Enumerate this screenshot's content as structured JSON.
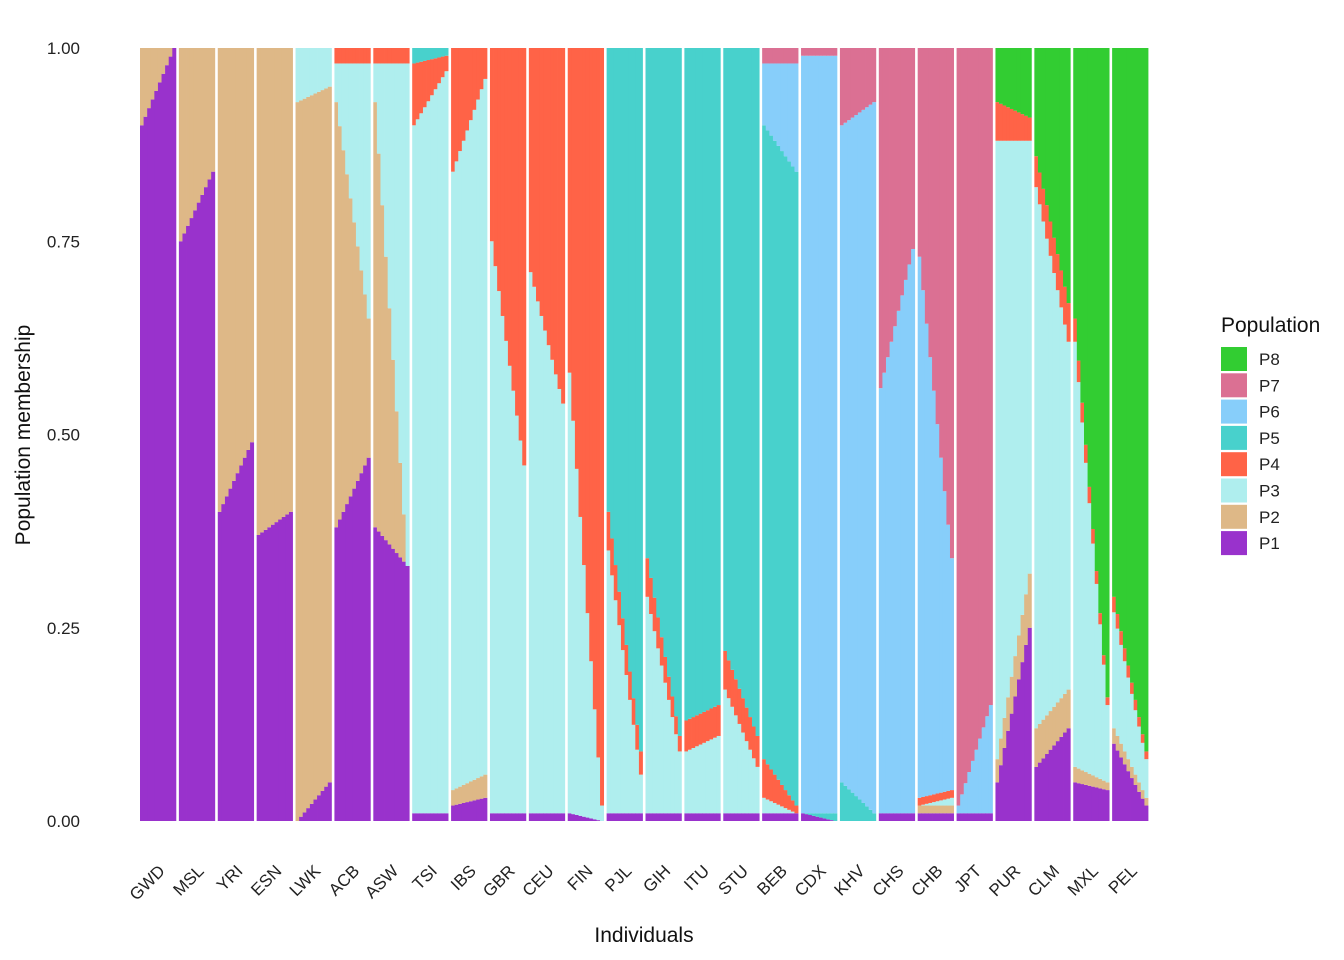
{
  "chart_data": {
    "type": "stacked-bar",
    "xlabel": "Individuals",
    "ylabel": "Population membership",
    "ylim": [
      0,
      1
    ],
    "yticks": [
      "0.00",
      "0.25",
      "0.50",
      "0.75",
      "1.00"
    ],
    "legend": {
      "title": "Population",
      "placement": "right",
      "entries": [
        {
          "name": "P8",
          "color": "#32CD32"
        },
        {
          "name": "P7",
          "color": "#DB7093"
        },
        {
          "name": "P6",
          "color": "#87CEFA"
        },
        {
          "name": "P5",
          "color": "#48D1CC"
        },
        {
          "name": "P4",
          "color": "#FF6347"
        },
        {
          "name": "P3",
          "color": "#AFEEEE"
        },
        {
          "name": "P2",
          "color": "#DEB887"
        },
        {
          "name": "P1",
          "color": "#9932CC"
        }
      ]
    },
    "stack_order_bottom_to_top": [
      "P1",
      "P2",
      "P3",
      "P4",
      "P5",
      "P6",
      "P7",
      "P8"
    ],
    "groups": [
      {
        "name": "GWD",
        "start": [
          0.9,
          0.1,
          0,
          0,
          0,
          0,
          0,
          0
        ],
        "end": [
          1.0,
          0,
          0,
          0,
          0,
          0,
          0,
          0
        ]
      },
      {
        "name": "MSL",
        "start": [
          0.75,
          0.25,
          0,
          0,
          0,
          0,
          0,
          0
        ],
        "end": [
          0.84,
          0.16,
          0,
          0,
          0,
          0,
          0,
          0
        ]
      },
      {
        "name": "YRI",
        "start": [
          0.4,
          0.6,
          0,
          0,
          0,
          0,
          0,
          0
        ],
        "end": [
          0.49,
          0.51,
          0,
          0,
          0,
          0,
          0,
          0
        ]
      },
      {
        "name": "ESN",
        "start": [
          0.37,
          0.63,
          0,
          0,
          0,
          0,
          0,
          0
        ],
        "end": [
          0.4,
          0.6,
          0,
          0,
          0,
          0,
          0,
          0
        ]
      },
      {
        "name": "LWK",
        "start": [
          0.0,
          0.93,
          0.07,
          0,
          0,
          0,
          0,
          0
        ],
        "end": [
          0.05,
          0.9,
          0.05,
          0,
          0,
          0,
          0,
          0
        ]
      },
      {
        "name": "ACB",
        "start": [
          0.38,
          0.55,
          0.05,
          0.02,
          0,
          0,
          0,
          0
        ],
        "end": [
          0.47,
          0.18,
          0.33,
          0.02,
          0,
          0,
          0,
          0
        ]
      },
      {
        "name": "ASW",
        "start": [
          0.38,
          0.55,
          0.05,
          0.02,
          0,
          0,
          0,
          0
        ],
        "end": [
          0.33,
          0.0,
          0.65,
          0.02,
          0,
          0,
          0,
          0
        ]
      },
      {
        "name": "TSI",
        "start": [
          0.01,
          0.0,
          0.89,
          0.08,
          0.02,
          0,
          0,
          0
        ],
        "end": [
          0.01,
          0.0,
          0.96,
          0.02,
          0.01,
          0,
          0,
          0
        ]
      },
      {
        "name": "IBS",
        "start": [
          0.02,
          0.02,
          0.8,
          0.16,
          0,
          0,
          0,
          0
        ],
        "end": [
          0.03,
          0.03,
          0.9,
          0.04,
          0,
          0,
          0,
          0
        ]
      },
      {
        "name": "GBR",
        "start": [
          0.01,
          0.0,
          0.74,
          0.25,
          0,
          0,
          0,
          0
        ],
        "end": [
          0.01,
          0.0,
          0.45,
          0.54,
          0,
          0,
          0,
          0
        ]
      },
      {
        "name": "CEU",
        "start": [
          0.01,
          0.0,
          0.7,
          0.29,
          0,
          0,
          0,
          0
        ],
        "end": [
          0.01,
          0.0,
          0.53,
          0.46,
          0,
          0,
          0,
          0
        ]
      },
      {
        "name": "FIN",
        "start": [
          0.01,
          0.0,
          0.57,
          0.42,
          0,
          0,
          0,
          0
        ],
        "end": [
          0.0,
          0.0,
          0.02,
          0.98,
          0,
          0,
          0,
          0
        ]
      },
      {
        "name": "PJL",
        "start": [
          0.01,
          0.0,
          0.34,
          0.05,
          0.6,
          0,
          0,
          0
        ],
        "end": [
          0.01,
          0.0,
          0.05,
          0.03,
          0.91,
          0,
          0,
          0
        ]
      },
      {
        "name": "GIH",
        "start": [
          0.01,
          0.0,
          0.28,
          0.05,
          0.66,
          0,
          0,
          0
        ],
        "end": [
          0.01,
          0.0,
          0.08,
          0.02,
          0.89,
          0,
          0,
          0
        ]
      },
      {
        "name": "ITU",
        "start": [
          0.01,
          0.0,
          0.08,
          0.04,
          0.87,
          0,
          0,
          0
        ],
        "end": [
          0.01,
          0.0,
          0.1,
          0.04,
          0.85,
          0,
          0,
          0
        ]
      },
      {
        "name": "STU",
        "start": [
          0.01,
          0.0,
          0.16,
          0.05,
          0.78,
          0,
          0,
          0
        ],
        "end": [
          0.01,
          0.0,
          0.06,
          0.04,
          0.89,
          0,
          0,
          0
        ]
      },
      {
        "name": "BEB",
        "start": [
          0.01,
          0.0,
          0.02,
          0.05,
          0.82,
          0.08,
          0.02,
          0
        ],
        "end": [
          0.01,
          0.0,
          0.0,
          0.01,
          0.82,
          0.14,
          0.02,
          0
        ]
      },
      {
        "name": "CDX",
        "start": [
          0.01,
          0.0,
          0.0,
          0.0,
          0.0,
          0.98,
          0.01,
          0
        ],
        "end": [
          0.0,
          0.0,
          0.0,
          0.0,
          0.01,
          0.98,
          0.01,
          0
        ]
      },
      {
        "name": "KHV",
        "start": [
          0.0,
          0.0,
          0.0,
          0.0,
          0.05,
          0.85,
          0.1,
          0
        ],
        "end": [
          0.0,
          0.0,
          0.0,
          0.0,
          0.01,
          0.92,
          0.07,
          0
        ]
      },
      {
        "name": "CHS",
        "start": [
          0.01,
          0.0,
          0.0,
          0.0,
          0.0,
          0.55,
          0.44,
          0
        ],
        "end": [
          0.01,
          0.0,
          0.0,
          0.0,
          0.0,
          0.73,
          0.26,
          0
        ]
      },
      {
        "name": "CHB",
        "start": [
          0.01,
          0.01,
          0.0,
          0.01,
          0.0,
          0.7,
          0.27,
          0
        ],
        "end": [
          0.01,
          0.01,
          0.01,
          0.01,
          0.0,
          0.3,
          0.66,
          0
        ]
      },
      {
        "name": "JPT",
        "start": [
          0.01,
          0.0,
          0.0,
          0.0,
          0.0,
          0.01,
          0.98,
          0
        ],
        "end": [
          0.01,
          0.0,
          0.0,
          0.0,
          0.0,
          0.14,
          0.85,
          0
        ]
      },
      {
        "name": "PUR",
        "start": [
          0.05,
          0.03,
          0.8,
          0.05,
          0,
          0,
          0,
          0.07
        ],
        "end": [
          0.25,
          0.07,
          0.56,
          0.03,
          0,
          0,
          0,
          0.09
        ]
      },
      {
        "name": "CLM",
        "start": [
          0.07,
          0.05,
          0.7,
          0.04,
          0,
          0,
          0,
          0.14
        ],
        "end": [
          0.12,
          0.05,
          0.45,
          0.05,
          0,
          0,
          0,
          0.33
        ]
      },
      {
        "name": "MXL",
        "start": [
          0.05,
          0.02,
          0.55,
          0.03,
          0,
          0,
          0,
          0.35
        ],
        "end": [
          0.04,
          0.01,
          0.1,
          0.01,
          0,
          0,
          0,
          0.84
        ]
      },
      {
        "name": "PEL",
        "start": [
          0.1,
          0.02,
          0.15,
          0.02,
          0,
          0,
          0,
          0.71
        ],
        "end": [
          0.02,
          0.01,
          0.05,
          0.01,
          0,
          0,
          0,
          0.91
        ]
      }
    ]
  }
}
